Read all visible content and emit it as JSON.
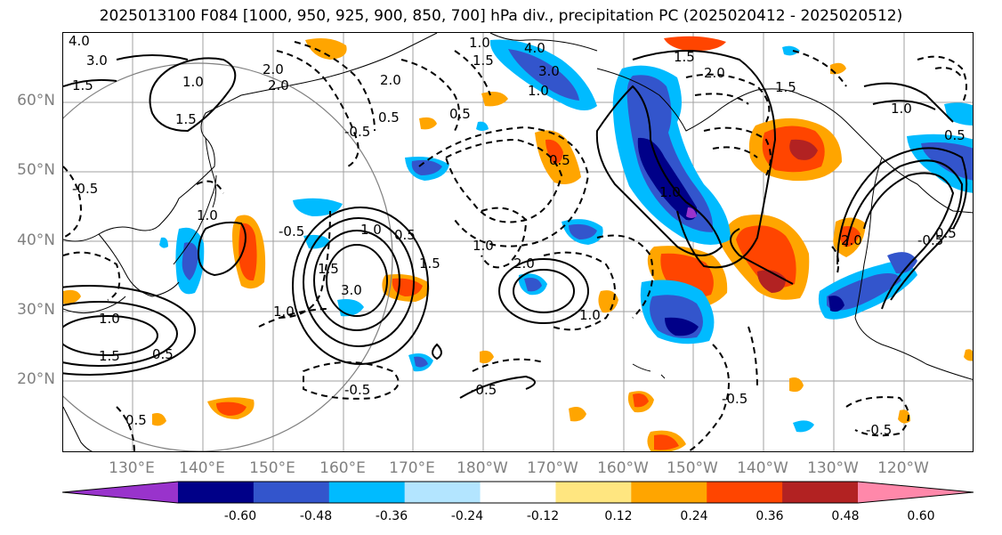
{
  "title": "2025013100 F084 [1000, 950, 925, 900, 850, 700] hPa div., precipitation PC (2025020412 - 2025020512)",
  "lat_labels": [
    "60°N",
    "50°N",
    "40°N",
    "30°N",
    "20°N"
  ],
  "lon_labels": [
    "130°E",
    "140°E",
    "150°E",
    "160°E",
    "170°E",
    "180°W",
    "170°W",
    "160°W",
    "150°W",
    "140°W",
    "130°W",
    "120°W"
  ],
  "contour_labels": [
    "4.0",
    "3.0",
    "1.5",
    "2.0",
    "1.0",
    "1.5",
    "2.0",
    "0.5",
    "0.5",
    "-0.5",
    "1.0",
    "1.5",
    "2.0",
    "4.0",
    "3.0",
    "1.5",
    "1.0",
    "1.5",
    "1.0",
    "0.5",
    "0.5",
    "1.0",
    "2.0",
    "1.0",
    "-0.5",
    "2.0",
    "3.0",
    "1.0",
    "1.5",
    "0.5",
    "2.0",
    "1.0",
    "1.0",
    "-0.5",
    "0.5",
    "1.5",
    "1.0",
    "-0.5",
    "0.5",
    "-0.5",
    "-0.5",
    "1.0",
    "1.5",
    "0.5",
    "-0.5",
    "-0.5"
  ],
  "colorbar": {
    "colors": [
      "#9933cc",
      "#000088",
      "#3355cc",
      "#00bbff",
      "#b3e5ff",
      "#ffffff",
      "#ffe680",
      "#ffa500",
      "#ff4500",
      "#b22222",
      "#ff88aa"
    ],
    "ticks": [
      "-0.60",
      "-0.48",
      "-0.36",
      "-0.24",
      "-0.12",
      "0.12",
      "0.24",
      "0.36",
      "0.48",
      "0.60"
    ]
  }
}
